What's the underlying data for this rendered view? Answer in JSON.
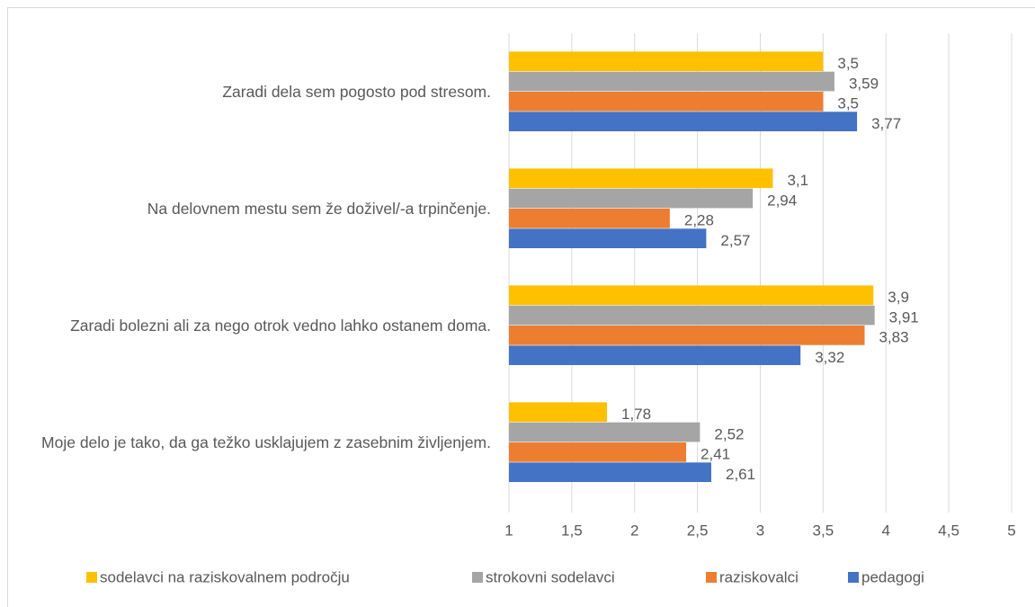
{
  "chart_data": {
    "type": "hbar",
    "categories": [
      "Zaradi dela sem pogosto pod stresom.",
      "Na delovnem mestu sem že doživel/-a trpinčenje.",
      "Zaradi bolezni ali za nego otrok vedno lahko ostanem doma.",
      "Moje delo je tako, da ga težko usklajujem z zasebnim življenjem."
    ],
    "series": [
      {
        "name": "sodelavci na raziskovalnem področju",
        "color": "#ffc000",
        "values": [
          3.5,
          3.1,
          3.9,
          1.78
        ],
        "value_labels": [
          "3,5",
          "3,1",
          "3,9",
          "1,78"
        ]
      },
      {
        "name": "strokovni sodelavci",
        "color": "#a5a5a5",
        "values": [
          3.59,
          2.94,
          3.91,
          2.52
        ],
        "value_labels": [
          "3,59",
          "2,94",
          "3,91",
          "2,52"
        ]
      },
      {
        "name": "raziskovalci",
        "color": "#ed7d31",
        "values": [
          3.5,
          2.28,
          3.83,
          2.41
        ],
        "value_labels": [
          "3,5",
          "2,28",
          "3,83",
          "2,41"
        ]
      },
      {
        "name": "pedagogi",
        "color": "#4472c4",
        "values": [
          3.77,
          2.57,
          3.32,
          2.61
        ],
        "value_labels": [
          "3,77",
          "2,57",
          "3,32",
          "2,61"
        ]
      }
    ],
    "xlim": [
      1,
      5
    ],
    "xticks": [
      1,
      {
        "value": 1.5,
        "label": "1,5"
      },
      2,
      {
        "value": 2.5,
        "label": "2,5"
      },
      3,
      {
        "value": 3.5,
        "label": "3,5"
      },
      4,
      {
        "value": 4.5,
        "label": "4,5"
      },
      5
    ],
    "grid": true,
    "legend": "bottom"
  }
}
